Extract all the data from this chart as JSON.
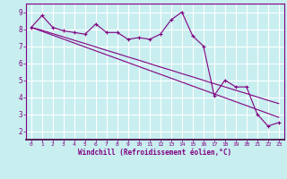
{
  "xlabel": "Windchill (Refroidissement éolien,°C)",
  "x_values": [
    0,
    1,
    2,
    3,
    4,
    5,
    6,
    7,
    8,
    9,
    10,
    11,
    12,
    13,
    14,
    15,
    16,
    17,
    18,
    19,
    20,
    21,
    22,
    23
  ],
  "y_main": [
    8.1,
    8.8,
    8.1,
    7.9,
    7.8,
    7.7,
    8.3,
    7.8,
    7.8,
    7.4,
    7.5,
    7.4,
    7.7,
    8.55,
    9.0,
    7.6,
    7.0,
    4.1,
    5.0,
    4.6,
    4.6,
    3.0,
    2.3,
    2.5
  ],
  "y_linear1": [
    8.1,
    7.93,
    7.73,
    7.54,
    7.34,
    7.15,
    6.95,
    6.75,
    6.56,
    6.36,
    6.17,
    5.97,
    5.77,
    5.58,
    5.38,
    5.19,
    4.99,
    4.79,
    4.6,
    4.4,
    4.21,
    4.01,
    3.81,
    3.62
  ],
  "y_linear2": [
    8.1,
    7.87,
    7.64,
    7.41,
    7.18,
    6.95,
    6.72,
    6.49,
    6.26,
    6.03,
    5.8,
    5.57,
    5.34,
    5.11,
    4.88,
    4.65,
    4.42,
    4.19,
    3.96,
    3.73,
    3.5,
    3.27,
    3.04,
    2.81
  ],
  "line_color": "#800080",
  "bg_color": "#c8eef0",
  "grid_color": "#ffffff",
  "ylim": [
    1.5,
    9.5
  ],
  "xlim": [
    -0.5,
    23.5
  ],
  "yticks": [
    2,
    3,
    4,
    5,
    6,
    7,
    8,
    9
  ],
  "xticks": [
    0,
    1,
    2,
    3,
    4,
    5,
    6,
    7,
    8,
    9,
    10,
    11,
    12,
    13,
    14,
    15,
    16,
    17,
    18,
    19,
    20,
    21,
    22,
    23
  ]
}
